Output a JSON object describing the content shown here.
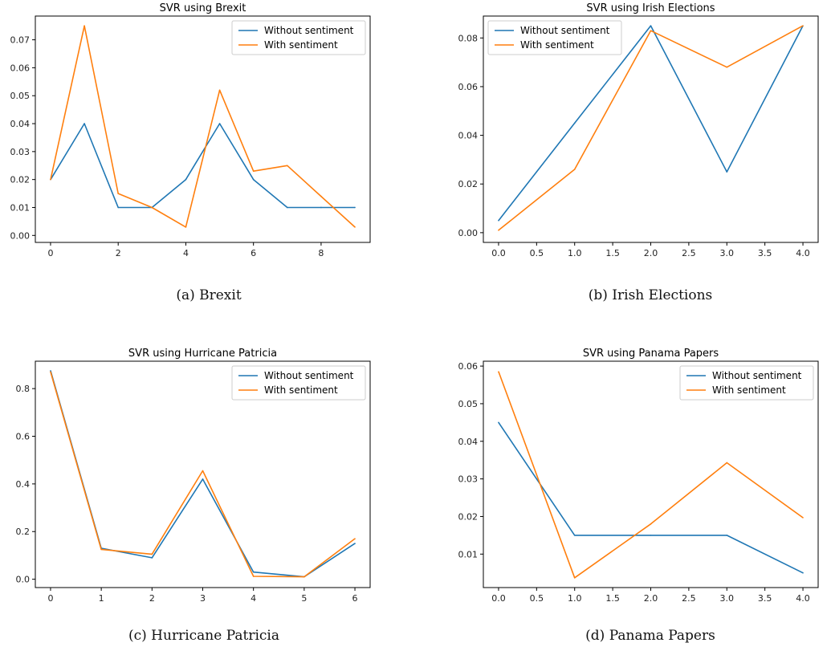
{
  "colors": {
    "without": "#1f77b4",
    "with": "#ff7f0e"
  },
  "chart_data": [
    {
      "type": "line",
      "title": "SVR using Brexit",
      "caption": "(a)  Brexit",
      "legend_position": "top-right",
      "xlim": [
        -0.45,
        9.45
      ],
      "ylim": [
        -0.0025,
        0.0785
      ],
      "xticks": [
        0,
        2,
        4,
        6,
        8
      ],
      "xtick_labels": [
        "0",
        "2",
        "4",
        "6",
        "8"
      ],
      "yticks": [
        0,
        0.01,
        0.02,
        0.03,
        0.04,
        0.05,
        0.06,
        0.07
      ],
      "ytick_labels": [
        "0.00",
        "0.01",
        "0.02",
        "0.03",
        "0.04",
        "0.05",
        "0.06",
        "0.07"
      ],
      "x": [
        0,
        1,
        2,
        3,
        4,
        5,
        6,
        7,
        8,
        9
      ],
      "series": [
        {
          "name": "Without sentiment",
          "values": [
            0.02,
            0.04,
            0.01,
            0.01,
            0.02,
            0.04,
            0.02,
            0.01,
            0.01,
            0.01
          ]
        },
        {
          "name": "With sentiment",
          "values": [
            0.02,
            0.075,
            0.015,
            0.01,
            0.003,
            0.052,
            0.023,
            0.025,
            0.014,
            0.003
          ]
        }
      ]
    },
    {
      "type": "line",
      "title": "SVR using Irish Elections",
      "caption": "(b)  Irish Elections",
      "legend_position": "top-left",
      "xlim": [
        -0.2,
        4.2
      ],
      "ylim": [
        -0.004,
        0.089
      ],
      "xticks": [
        0,
        0.5,
        1,
        1.5,
        2,
        2.5,
        3,
        3.5,
        4
      ],
      "xtick_labels": [
        "0.0",
        "0.5",
        "1.0",
        "1.5",
        "2.0",
        "2.5",
        "3.0",
        "3.5",
        "4.0"
      ],
      "yticks": [
        0,
        0.02,
        0.04,
        0.06,
        0.08
      ],
      "ytick_labels": [
        "0.00",
        "0.02",
        "0.04",
        "0.06",
        "0.08"
      ],
      "x": [
        0,
        1,
        2,
        3,
        4
      ],
      "series": [
        {
          "name": "Without sentiment",
          "values": [
            0.005,
            0.045,
            0.085,
            0.025,
            0.085
          ]
        },
        {
          "name": "With sentiment",
          "values": [
            0.001,
            0.026,
            0.083,
            0.068,
            0.085
          ]
        }
      ]
    },
    {
      "type": "line",
      "title": "SVR using Hurricane Patricia",
      "caption": "(c)  Hurricane Patricia",
      "legend_position": "top-right",
      "xlim": [
        -0.3,
        6.3
      ],
      "ylim": [
        -0.035,
        0.915
      ],
      "xticks": [
        0,
        1,
        2,
        3,
        4,
        5,
        6
      ],
      "xtick_labels": [
        "0",
        "1",
        "2",
        "3",
        "4",
        "5",
        "6"
      ],
      "yticks": [
        0,
        0.2,
        0.4,
        0.6,
        0.8
      ],
      "ytick_labels": [
        "0.0",
        "0.2",
        "0.4",
        "0.6",
        "0.8"
      ],
      "x": [
        0,
        1,
        2,
        3,
        4,
        5,
        6
      ],
      "series": [
        {
          "name": "Without sentiment",
          "values": [
            0.875,
            0.13,
            0.09,
            0.42,
            0.03,
            0.01,
            0.15
          ]
        },
        {
          "name": "With sentiment",
          "values": [
            0.87,
            0.125,
            0.105,
            0.455,
            0.012,
            0.01,
            0.17
          ]
        }
      ]
    },
    {
      "type": "line",
      "title": "SVR using Panama Papers",
      "caption": "(d)  Panama Papers",
      "legend_position": "top-right",
      "xlim": [
        -0.2,
        4.2
      ],
      "ylim": [
        0.0011,
        0.0613
      ],
      "xticks": [
        0,
        0.5,
        1,
        1.5,
        2,
        2.5,
        3,
        3.5,
        4
      ],
      "xtick_labels": [
        "0.0",
        "0.5",
        "1.0",
        "1.5",
        "2.0",
        "2.5",
        "3.0",
        "3.5",
        "4.0"
      ],
      "yticks": [
        0.01,
        0.02,
        0.03,
        0.04,
        0.05,
        0.06
      ],
      "ytick_labels": [
        "0.01",
        "0.02",
        "0.03",
        "0.04",
        "0.05",
        "0.06"
      ],
      "x": [
        0,
        1,
        2,
        3,
        4
      ],
      "series": [
        {
          "name": "Without sentiment",
          "values": [
            0.045,
            0.015,
            0.015,
            0.015,
            0.005
          ]
        },
        {
          "name": "With sentiment",
          "values": [
            0.0585,
            0.0037,
            0.018,
            0.0343,
            0.0197
          ]
        }
      ]
    }
  ]
}
